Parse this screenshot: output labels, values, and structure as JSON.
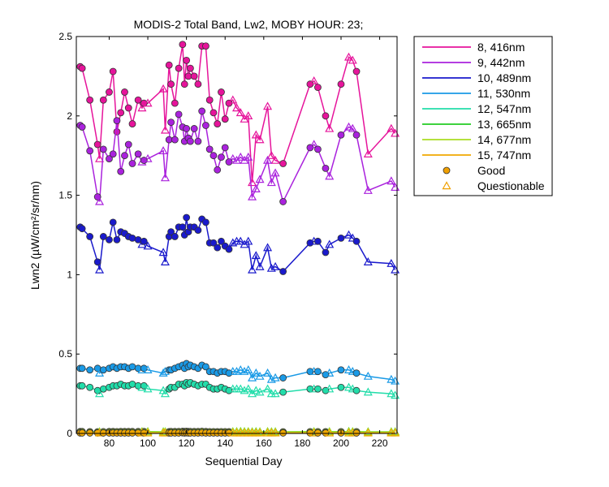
{
  "chart_data": {
    "type": "line",
    "title": "MODIS-2 Total Band, Lw2, MOBY HOUR: 23;",
    "xlabel": "Sequential Day",
    "ylabel": "Lwn2 (µW/cm²/sr/nm)",
    "xlim": [
      63,
      229
    ],
    "ylim": [
      0,
      2.5
    ],
    "xticks": [
      "80",
      "100",
      "120",
      "140",
      "160",
      "180",
      "200",
      "220"
    ],
    "yticks": [
      "0",
      "0.5",
      "1",
      "1.5",
      "2",
      "2.5"
    ],
    "grid": false,
    "legend_position": "outside-right",
    "x": [
      65,
      66,
      70,
      74,
      75,
      77,
      80,
      82,
      84,
      86,
      88,
      90,
      92,
      95,
      97,
      98,
      100,
      108,
      109,
      111,
      112,
      114,
      116,
      118,
      119,
      120,
      121,
      122,
      124,
      126,
      128,
      130,
      132,
      134,
      136,
      138,
      140,
      142,
      144,
      146,
      148,
      150,
      152,
      154,
      156,
      158,
      162,
      164,
      166,
      170,
      184,
      186,
      188,
      192,
      194,
      200,
      204,
      206,
      208,
      214,
      226,
      228
    ],
    "series": [
      {
        "name": "8, 416nm",
        "color": "#e6149b",
        "values": [
          2.31,
          2.3,
          2.1,
          1.82,
          1.73,
          2.1,
          2.15,
          2.28,
          1.9,
          2.02,
          2.15,
          2.05,
          1.95,
          2.1,
          2.05,
          2.08,
          2.08,
          2.17,
          1.91,
          2.32,
          2.2,
          2.08,
          2.3,
          2.45,
          2.2,
          2.35,
          2.25,
          2.3,
          2.25,
          2.2,
          2.44,
          2.44,
          2.1,
          2.02,
          1.95,
          2.15,
          1.98,
          2.08,
          2.1,
          2.05,
          2.02,
          1.98,
          2.0,
          1.58,
          1.88,
          1.85,
          2.06,
          1.75,
          1.72,
          1.7,
          2.2,
          2.22,
          2.18,
          2.0,
          1.92,
          2.2,
          2.37,
          2.35,
          2.28,
          1.76,
          1.92,
          1.89
        ],
        "status": [
          "G",
          "G",
          "G",
          "G",
          "Q",
          "G",
          "G",
          "G",
          "G",
          "G",
          "G",
          "G",
          "G",
          "G",
          "Q",
          "G",
          "Q",
          "Q",
          "Q",
          "G",
          "G",
          "G",
          "G",
          "G",
          "G",
          "G",
          "G",
          "G",
          "G",
          "G",
          "G",
          "G",
          "G",
          "G",
          "G",
          "G",
          "G",
          "G",
          "Q",
          "Q",
          "Q",
          "Q",
          "Q",
          "Q",
          "Q",
          "Q",
          "Q",
          "Q",
          "Q",
          "G",
          "G",
          "Q",
          "G",
          "G",
          "Q",
          "G",
          "Q",
          "Q",
          "G",
          "Q",
          "Q",
          "Q"
        ]
      },
      {
        "name": "9, 442nm",
        "color": "#aa22dd",
        "values": [
          1.94,
          1.93,
          1.78,
          1.49,
          1.46,
          1.79,
          1.73,
          1.76,
          1.97,
          1.65,
          1.75,
          1.82,
          1.7,
          1.76,
          1.71,
          1.72,
          1.73,
          1.78,
          1.61,
          1.85,
          1.96,
          1.85,
          2.01,
          1.93,
          1.84,
          1.92,
          1.86,
          1.84,
          1.92,
          1.84,
          2.03,
          1.94,
          1.79,
          1.75,
          1.66,
          1.74,
          1.8,
          1.71,
          1.73,
          1.72,
          1.74,
          1.72,
          1.74,
          1.49,
          1.54,
          1.6,
          1.72,
          1.58,
          1.64,
          1.46,
          1.8,
          1.82,
          1.79,
          1.67,
          1.62,
          1.88,
          1.93,
          1.92,
          1.88,
          1.53,
          1.59,
          1.55
        ],
        "status": [
          "G",
          "G",
          "G",
          "G",
          "Q",
          "G",
          "G",
          "G",
          "G",
          "G",
          "G",
          "G",
          "G",
          "G",
          "Q",
          "G",
          "Q",
          "Q",
          "Q",
          "G",
          "G",
          "G",
          "G",
          "G",
          "G",
          "G",
          "G",
          "G",
          "G",
          "G",
          "G",
          "G",
          "G",
          "G",
          "G",
          "G",
          "G",
          "G",
          "Q",
          "Q",
          "Q",
          "Q",
          "Q",
          "Q",
          "Q",
          "Q",
          "Q",
          "Q",
          "Q",
          "G",
          "G",
          "Q",
          "G",
          "G",
          "Q",
          "G",
          "Q",
          "Q",
          "G",
          "Q",
          "Q",
          "Q"
        ]
      },
      {
        "name": "10, 489nm",
        "color": "#1a1acc",
        "values": [
          1.3,
          1.29,
          1.24,
          1.08,
          1.03,
          1.24,
          1.22,
          1.33,
          1.22,
          1.27,
          1.26,
          1.24,
          1.23,
          1.22,
          1.19,
          1.21,
          1.18,
          1.14,
          1.08,
          1.24,
          1.27,
          1.24,
          1.3,
          1.3,
          1.25,
          1.36,
          1.27,
          1.3,
          1.3,
          1.28,
          1.35,
          1.33,
          1.2,
          1.2,
          1.17,
          1.21,
          1.18,
          1.16,
          1.2,
          1.21,
          1.21,
          1.19,
          1.21,
          1.03,
          1.12,
          1.05,
          1.17,
          1.04,
          1.05,
          1.02,
          1.2,
          1.21,
          1.21,
          1.14,
          1.19,
          1.23,
          1.25,
          1.23,
          1.21,
          1.08,
          1.07,
          1.03
        ],
        "status": [
          "G",
          "G",
          "G",
          "G",
          "Q",
          "G",
          "G",
          "G",
          "G",
          "G",
          "G",
          "G",
          "G",
          "G",
          "Q",
          "G",
          "Q",
          "Q",
          "Q",
          "G",
          "G",
          "G",
          "G",
          "G",
          "G",
          "G",
          "G",
          "G",
          "G",
          "G",
          "G",
          "G",
          "G",
          "G",
          "G",
          "G",
          "G",
          "G",
          "Q",
          "Q",
          "Q",
          "Q",
          "Q",
          "Q",
          "Q",
          "Q",
          "Q",
          "Q",
          "Q",
          "G",
          "G",
          "Q",
          "G",
          "G",
          "Q",
          "G",
          "Q",
          "Q",
          "G",
          "Q",
          "Q",
          "Q"
        ]
      },
      {
        "name": "11, 530nm",
        "color": "#1a9ae6",
        "values": [
          0.41,
          0.41,
          0.4,
          0.41,
          0.38,
          0.4,
          0.41,
          0.42,
          0.41,
          0.42,
          0.42,
          0.41,
          0.42,
          0.41,
          0.4,
          0.41,
          0.4,
          0.38,
          0.39,
          0.4,
          0.4,
          0.41,
          0.42,
          0.43,
          0.41,
          0.44,
          0.42,
          0.43,
          0.42,
          0.41,
          0.43,
          0.42,
          0.39,
          0.39,
          0.38,
          0.39,
          0.39,
          0.38,
          0.39,
          0.39,
          0.4,
          0.39,
          0.4,
          0.35,
          0.38,
          0.36,
          0.38,
          0.34,
          0.35,
          0.35,
          0.39,
          0.39,
          0.39,
          0.37,
          0.38,
          0.4,
          0.4,
          0.39,
          0.38,
          0.36,
          0.34,
          0.33
        ],
        "status": [
          "G",
          "G",
          "G",
          "G",
          "Q",
          "G",
          "G",
          "G",
          "G",
          "G",
          "G",
          "G",
          "G",
          "G",
          "Q",
          "G",
          "Q",
          "Q",
          "Q",
          "G",
          "G",
          "G",
          "G",
          "G",
          "G",
          "G",
          "G",
          "G",
          "G",
          "G",
          "G",
          "G",
          "G",
          "G",
          "G",
          "G",
          "G",
          "G",
          "Q",
          "Q",
          "Q",
          "Q",
          "Q",
          "Q",
          "Q",
          "Q",
          "Q",
          "Q",
          "Q",
          "G",
          "G",
          "Q",
          "G",
          "G",
          "Q",
          "G",
          "Q",
          "Q",
          "G",
          "Q",
          "Q",
          "Q"
        ]
      },
      {
        "name": "12, 547nm",
        "color": "#22ddaa",
        "values": [
          0.3,
          0.3,
          0.29,
          0.27,
          0.25,
          0.28,
          0.29,
          0.3,
          0.3,
          0.31,
          0.3,
          0.3,
          0.31,
          0.3,
          0.29,
          0.3,
          0.28,
          0.27,
          0.25,
          0.28,
          0.29,
          0.29,
          0.31,
          0.31,
          0.3,
          0.32,
          0.31,
          0.32,
          0.31,
          0.3,
          0.31,
          0.31,
          0.29,
          0.28,
          0.28,
          0.29,
          0.28,
          0.27,
          0.28,
          0.28,
          0.28,
          0.27,
          0.28,
          0.25,
          0.27,
          0.26,
          0.28,
          0.25,
          0.25,
          0.26,
          0.28,
          0.28,
          0.28,
          0.27,
          0.28,
          0.29,
          0.29,
          0.28,
          0.27,
          0.26,
          0.25,
          0.24
        ],
        "status": [
          "G",
          "G",
          "G",
          "G",
          "Q",
          "G",
          "G",
          "G",
          "G",
          "G",
          "G",
          "G",
          "G",
          "G",
          "Q",
          "G",
          "Q",
          "Q",
          "Q",
          "G",
          "G",
          "G",
          "G",
          "G",
          "G",
          "G",
          "G",
          "G",
          "G",
          "G",
          "G",
          "G",
          "G",
          "G",
          "G",
          "G",
          "G",
          "G",
          "Q",
          "Q",
          "Q",
          "Q",
          "Q",
          "Q",
          "Q",
          "Q",
          "Q",
          "Q",
          "Q",
          "G",
          "G",
          "Q",
          "G",
          "G",
          "Q",
          "G",
          "Q",
          "Q",
          "G",
          "Q",
          "Q",
          "Q"
        ]
      },
      {
        "name": "13, 665nm",
        "color": "#22cc22",
        "values": [
          0.012,
          0.012,
          0.011,
          0.01,
          0.01,
          0.011,
          0.012,
          0.012,
          0.011,
          0.012,
          0.012,
          0.012,
          0.012,
          0.012,
          0.011,
          0.012,
          0.011,
          0.01,
          0.01,
          0.011,
          0.012,
          0.012,
          0.012,
          0.013,
          0.012,
          0.013,
          0.012,
          0.012,
          0.012,
          0.012,
          0.013,
          0.012,
          0.011,
          0.011,
          0.011,
          0.011,
          0.011,
          0.011,
          0.011,
          0.011,
          0.012,
          0.011,
          0.011,
          0.01,
          0.011,
          0.01,
          0.011,
          0.01,
          0.01,
          0.01,
          0.011,
          0.011,
          0.011,
          0.011,
          0.011,
          0.011,
          0.012,
          0.011,
          0.011,
          0.01,
          0.01,
          0.01
        ],
        "status": [
          "G",
          "G",
          "G",
          "G",
          "Q",
          "G",
          "G",
          "G",
          "G",
          "G",
          "G",
          "G",
          "G",
          "G",
          "Q",
          "G",
          "Q",
          "Q",
          "Q",
          "G",
          "G",
          "G",
          "G",
          "G",
          "G",
          "G",
          "G",
          "G",
          "G",
          "G",
          "G",
          "G",
          "G",
          "G",
          "G",
          "G",
          "G",
          "G",
          "Q",
          "Q",
          "Q",
          "Q",
          "Q",
          "Q",
          "Q",
          "Q",
          "Q",
          "Q",
          "Q",
          "G",
          "G",
          "Q",
          "G",
          "G",
          "Q",
          "G",
          "Q",
          "Q",
          "G",
          "Q",
          "Q",
          "Q"
        ]
      },
      {
        "name": "14, 677nm",
        "color": "#aadd22",
        "values": [
          0.01,
          0.01,
          0.009,
          0.009,
          0.009,
          0.01,
          0.01,
          0.01,
          0.01,
          0.01,
          0.01,
          0.01,
          0.01,
          0.01,
          0.01,
          0.01,
          0.01,
          0.009,
          0.009,
          0.01,
          0.01,
          0.01,
          0.01,
          0.011,
          0.01,
          0.011,
          0.01,
          0.01,
          0.01,
          0.01,
          0.011,
          0.01,
          0.01,
          0.01,
          0.009,
          0.01,
          0.01,
          0.009,
          0.01,
          0.01,
          0.01,
          0.01,
          0.01,
          0.009,
          0.009,
          0.009,
          0.01,
          0.009,
          0.009,
          0.009,
          0.01,
          0.01,
          0.01,
          0.009,
          0.01,
          0.01,
          0.01,
          0.01,
          0.01,
          0.009,
          0.009,
          0.009
        ],
        "status": [
          "G",
          "G",
          "G",
          "G",
          "Q",
          "G",
          "G",
          "G",
          "G",
          "G",
          "G",
          "G",
          "G",
          "G",
          "Q",
          "G",
          "Q",
          "Q",
          "Q",
          "G",
          "G",
          "G",
          "G",
          "G",
          "G",
          "G",
          "G",
          "G",
          "G",
          "G",
          "G",
          "G",
          "G",
          "G",
          "G",
          "G",
          "G",
          "G",
          "Q",
          "Q",
          "Q",
          "Q",
          "Q",
          "Q",
          "Q",
          "Q",
          "Q",
          "Q",
          "Q",
          "G",
          "G",
          "Q",
          "G",
          "G",
          "Q",
          "G",
          "Q",
          "Q",
          "G",
          "Q",
          "Q",
          "Q"
        ]
      },
      {
        "name": "15, 747nm",
        "color": "#f0a800",
        "values": [
          0.003,
          0.003,
          0.003,
          0.003,
          0.003,
          0.003,
          0.003,
          0.003,
          0.003,
          0.003,
          0.003,
          0.003,
          0.003,
          0.003,
          0.003,
          0.003,
          0.003,
          0.003,
          0.003,
          0.003,
          0.003,
          0.003,
          0.003,
          0.004,
          0.003,
          0.004,
          0.003,
          0.003,
          0.003,
          0.003,
          0.004,
          0.003,
          0.003,
          0.003,
          0.003,
          0.003,
          0.003,
          0.003,
          0.003,
          0.003,
          0.003,
          0.003,
          0.003,
          0.003,
          0.003,
          0.003,
          0.003,
          0.003,
          0.003,
          0.003,
          0.003,
          0.003,
          0.003,
          0.003,
          0.003,
          0.003,
          0.003,
          0.003,
          0.003,
          0.003,
          0.003,
          0.003
        ],
        "status": [
          "G",
          "G",
          "G",
          "G",
          "Q",
          "G",
          "G",
          "G",
          "G",
          "G",
          "G",
          "G",
          "G",
          "G",
          "Q",
          "G",
          "Q",
          "Q",
          "Q",
          "G",
          "G",
          "G",
          "G",
          "G",
          "G",
          "G",
          "G",
          "G",
          "G",
          "G",
          "G",
          "G",
          "G",
          "G",
          "G",
          "G",
          "G",
          "G",
          "Q",
          "Q",
          "Q",
          "Q",
          "Q",
          "Q",
          "Q",
          "Q",
          "Q",
          "Q",
          "Q",
          "G",
          "G",
          "Q",
          "G",
          "G",
          "Q",
          "G",
          "Q",
          "Q",
          "G",
          "Q",
          "Q",
          "Q"
        ]
      }
    ],
    "marker_legend": [
      {
        "label": "Good",
        "marker": "circle",
        "color": "#f0a000"
      },
      {
        "label": "Questionable",
        "marker": "triangle",
        "color": "#f0a000"
      }
    ]
  }
}
